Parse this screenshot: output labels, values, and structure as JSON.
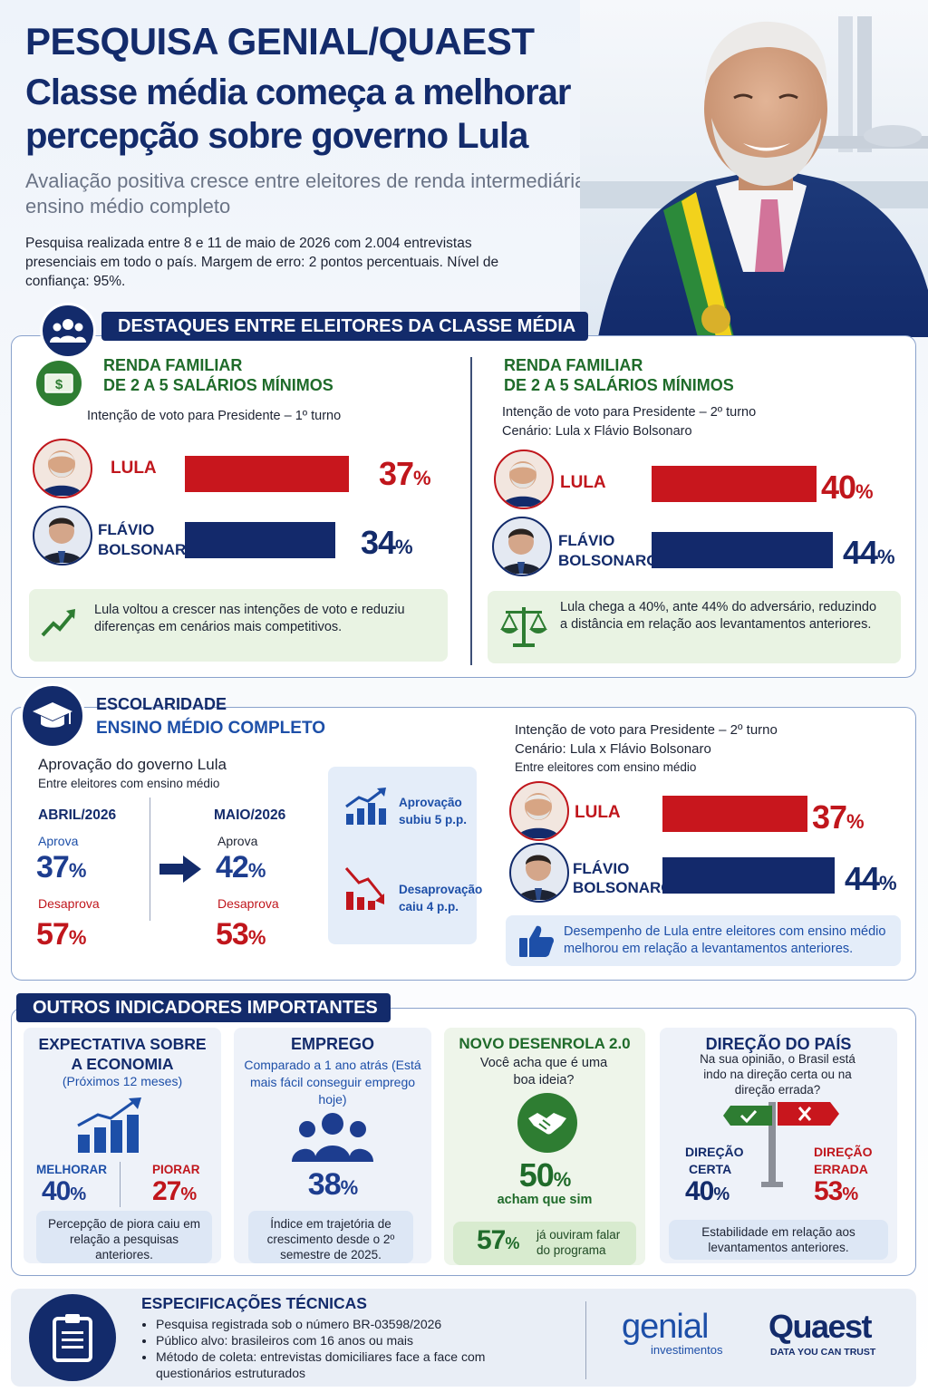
{
  "header": {
    "title_line1": "PESQUISA GENIAL/QUAEST",
    "title_line2": "Classe média começa a melhorar percepção sobre governo Lula",
    "subtitle": "Avaliação positiva cresce entre eleitores de renda intermediária e ensino médio completo",
    "methodology": "Pesquisa realizada entre 8 e 11 de maio de 2026 com 2.004 entrevistas presenciais em todo o país. Margem de erro: 2 pontos percentuais. Nível de confiança: 95%."
  },
  "colors": {
    "navy": "#132b6b",
    "red": "#c0161c",
    "green": "#1f6b2a"
  },
  "middle_class": {
    "banner": "DESTAQUES ENTRE ELEITORES DA CLASSE MÉDIA",
    "left": {
      "icon": "money-icon",
      "title_line1": "RENDA FAMILIAR",
      "title_line2": "DE 2 A 5 SALÁRIOS MÍNIMOS",
      "subtitle": "Intenção de voto para Presidente – 1º turno",
      "candidates": [
        {
          "name": "LULA",
          "value": 37,
          "label": "37"
        },
        {
          "name_line1": "FLÁVIO",
          "name_line2": "BOLSONARO",
          "value": 34,
          "label": "34"
        }
      ],
      "note": "Lula voltou a crescer nas intenções de voto e reduziu diferenças em cenários mais competitivos."
    },
    "right": {
      "title_line1": "RENDA FAMILIAR",
      "title_line2": "DE 2 A 5 SALÁRIOS MÍNIMOS",
      "subtitle_line1": "Intenção de voto para Presidente – 2º turno",
      "subtitle_line2": "Cenário: Lula x Flávio Bolsonaro",
      "candidates": [
        {
          "name": "LULA",
          "value": 40,
          "label": "40"
        },
        {
          "name_line1": "FLÁVIO",
          "name_line2": "BOLSONARO",
          "value": 44,
          "label": "44"
        }
      ],
      "note": "Lula chega a 40%, ante 44% do adversário, reduzindo a distância em relação aos levantamentos anteriores."
    }
  },
  "education": {
    "title_line1": "ESCOLARIDADE",
    "title_line2": "ENSINO MÉDIO COMPLETO",
    "approval_title": "Aprovação do governo Lula",
    "approval_subtitle": "Entre eleitores com ensino médio",
    "april": {
      "label": "ABRIL/2026",
      "approve_label": "Aprova",
      "approve": "37",
      "disapprove_label": "Desaprova",
      "disapprove": "57"
    },
    "may": {
      "label": "MAIO/2026",
      "approve_label": "Aprova",
      "approve": "42",
      "disapprove_label": "Desaprova",
      "disapprove": "53"
    },
    "trend_up": "Aprovação subiu 5 p.p.",
    "trend_down": "Desaprovação caiu 4 p.p.",
    "vote_title_line1": "Intenção de voto para Presidente – 2º turno",
    "vote_title_line2": "Cenário: Lula x Flávio Bolsonaro",
    "vote_subtitle": "Entre eleitores com ensino médio",
    "candidates": [
      {
        "name": "LULA",
        "value": 37,
        "label": "37"
      },
      {
        "name_line1": "FLÁVIO",
        "name_line2": "BOLSONARO",
        "value": 44,
        "label": "44"
      }
    ],
    "note": "Desempenho de Lula entre eleitores com ensino médio melhorou em relação a levantamentos anteriores."
  },
  "indicators": {
    "banner": "OUTROS INDICADORES IMPORTANTES",
    "economy": {
      "title_line1": "EXPECTATIVA SOBRE",
      "title_line2": "A ECONOMIA",
      "subtitle": "(Próximos 12 meses)",
      "better_label": "MELHORAR",
      "better": "40",
      "worse_label": "PIORAR",
      "worse": "27",
      "note": "Percepção de piora caiu em relação a pesquisas anteriores."
    },
    "employment": {
      "title": "EMPREGO",
      "subtitle": "Comparado a 1 ano atrás (Está mais fácil conseguir emprego hoje)",
      "value": "38",
      "note": "Índice em trajetória de crescimento desde o 2º semestre de 2025."
    },
    "desenrola": {
      "title": "NOVO DESENROLA 2.0",
      "question": "Você acha que é uma boa ideia?",
      "value": "50",
      "value_caption": "acham que sim",
      "heard": "57",
      "heard_caption": "já ouviram falar do programa"
    },
    "direction": {
      "title": "DIREÇÃO DO PAÍS",
      "question": "Na sua opinião, o Brasil está indo na direção certa ou na direção errada?",
      "right_label_1": "DIREÇÃO",
      "right_label_2": "CERTA",
      "right": "40",
      "wrong_label_1": "DIREÇÃO",
      "wrong_label_2": "ERRADA",
      "wrong": "53",
      "note": "Estabilidade em relação aos levantamentos anteriores."
    }
  },
  "specs": {
    "title": "ESPECIFICAÇÕES TÉCNICAS",
    "items": [
      "Pesquisa registrada sob o número BR-03598/2026",
      "Público alvo: brasileiros com 16 anos ou mais",
      "Método de coleta: entrevistas domiciliares face a face com questionários estruturados"
    ],
    "logo_genial": "genial",
    "logo_genial_sub": "investimentos",
    "logo_quaest": "Quaest",
    "logo_quaest_sub": "DATA YOU CAN TRUST"
  },
  "pct_sign": "%"
}
